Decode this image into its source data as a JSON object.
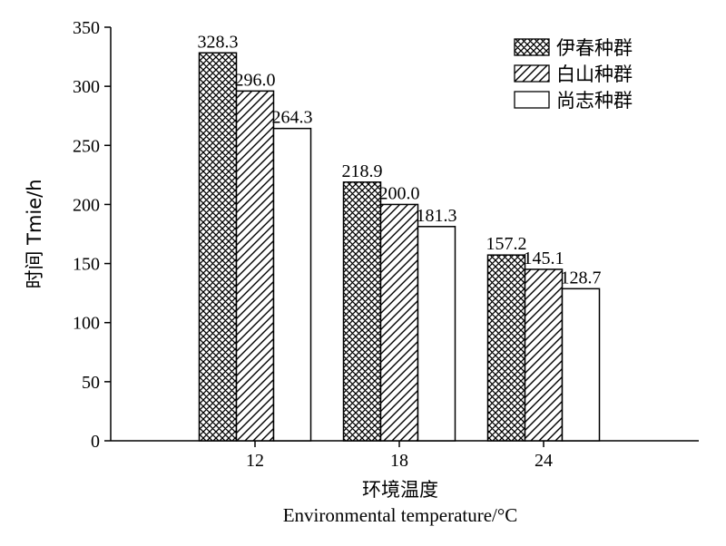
{
  "chart_data": {
    "type": "bar",
    "categories": [
      "12",
      "18",
      "24"
    ],
    "series": [
      {
        "name": "伊春种群",
        "values": [
          328.3,
          218.9,
          157.2
        ],
        "pattern": "crosshatch"
      },
      {
        "name": "白山种群",
        "values": [
          296.0,
          200.0,
          145.1
        ],
        "pattern": "diagonal"
      },
      {
        "name": "尚志种群",
        "values": [
          264.3,
          181.3,
          128.7
        ],
        "pattern": "none"
      }
    ],
    "data_labels": [
      [
        "328.3",
        "218.9",
        "157.2"
      ],
      [
        "296.0",
        "200.0",
        "145.1"
      ],
      [
        "264.3",
        "181.3",
        "128.7"
      ]
    ],
    "xlabel": "环境温度",
    "xlabel_en": "Environmental temperature/°C",
    "ylabel": "时间 Tmie/h",
    "ylim": [
      0,
      350
    ],
    "yticks": [
      "0",
      "50",
      "100",
      "150",
      "200",
      "250",
      "300",
      "350"
    ],
    "grid": false,
    "legend_position": "top-right",
    "bar_color": "#ffffff",
    "stroke_color": "#000000"
  }
}
